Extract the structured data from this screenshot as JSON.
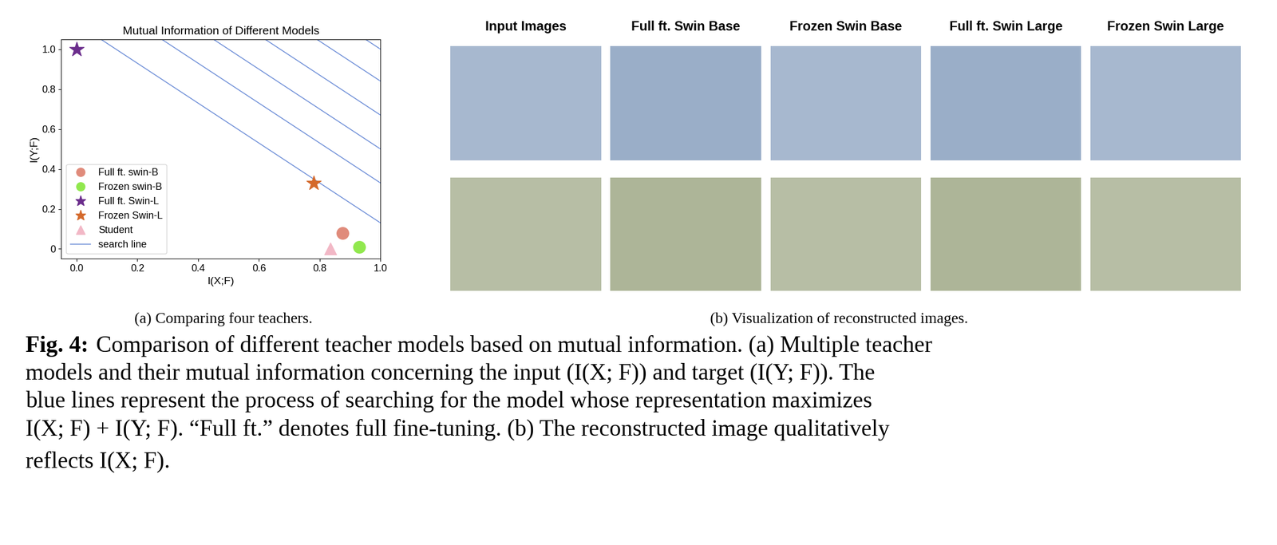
{
  "chart_data": {
    "type": "scatter",
    "title": "Mutual Information of Different Models",
    "x_label": "I(X;F)",
    "y_label": "I(Y;F)",
    "xlim": [
      -0.05,
      1.0
    ],
    "ylim": [
      -0.05,
      1.05
    ],
    "xticks": [
      0.0,
      0.2,
      0.4,
      0.6,
      0.8,
      1.0
    ],
    "yticks": [
      0,
      0.2,
      0.4,
      0.6,
      0.8,
      1.0
    ],
    "legend": "lower left",
    "grid": false,
    "series": [
      {
        "name": "Full ft. swin-B",
        "type": "scatter",
        "marker": "circle",
        "color": "#e08b7b",
        "x": [
          0.875
        ],
        "values": [
          0.08
        ]
      },
      {
        "name": "Frozen swin-B",
        "type": "scatter",
        "marker": "circle",
        "color": "#91e84e",
        "x": [
          0.93
        ],
        "values": [
          0.01
        ]
      },
      {
        "name": "Full ft. Swin-L",
        "type": "scatter",
        "marker": "star",
        "color": "#6b2d8c",
        "x": [
          0.0
        ],
        "values": [
          1.0
        ]
      },
      {
        "name": "Frozen Swin-L",
        "type": "scatter",
        "marker": "star",
        "color": "#d4692b",
        "x": [
          0.78
        ],
        "values": [
          0.33
        ]
      },
      {
        "name": "Student",
        "type": "scatter",
        "marker": "triangle",
        "color": "#f2b8c6",
        "x": [
          0.835
        ],
        "values": [
          0.0
        ]
      },
      {
        "name": "search line",
        "type": "line",
        "line_style": "solid",
        "color": "#7090d8",
        "sums": [
          1.13,
          1.33,
          1.5,
          1.67,
          1.84,
          2.0
        ]
      }
    ]
  },
  "images": {
    "columns": [
      "Input Images",
      "Full ft. Swin Base",
      "Frozen Swin Base",
      "Full ft. Swin Large",
      "Frozen Swin Large"
    ]
  },
  "subcaptions": [
    "(a) Comparing four teachers.",
    "(b) Visualization of reconstructed images."
  ],
  "caption": {
    "label": "Fig. 4:",
    "lines": [
      "Comparison of different teacher models based on mutual information. (a) Multiple teacher",
      "models and their mutual information concerning the input (I(X; F)) and target (I(Y; F)). The",
      "blue lines represent the process of searching for the model whose representation maximizes",
      "I(X; F) + I(Y; F). “Full ft.” denotes full fine-tuning. (b) The reconstructed image qualitatively",
      "reflects I(X; F)."
    ]
  }
}
